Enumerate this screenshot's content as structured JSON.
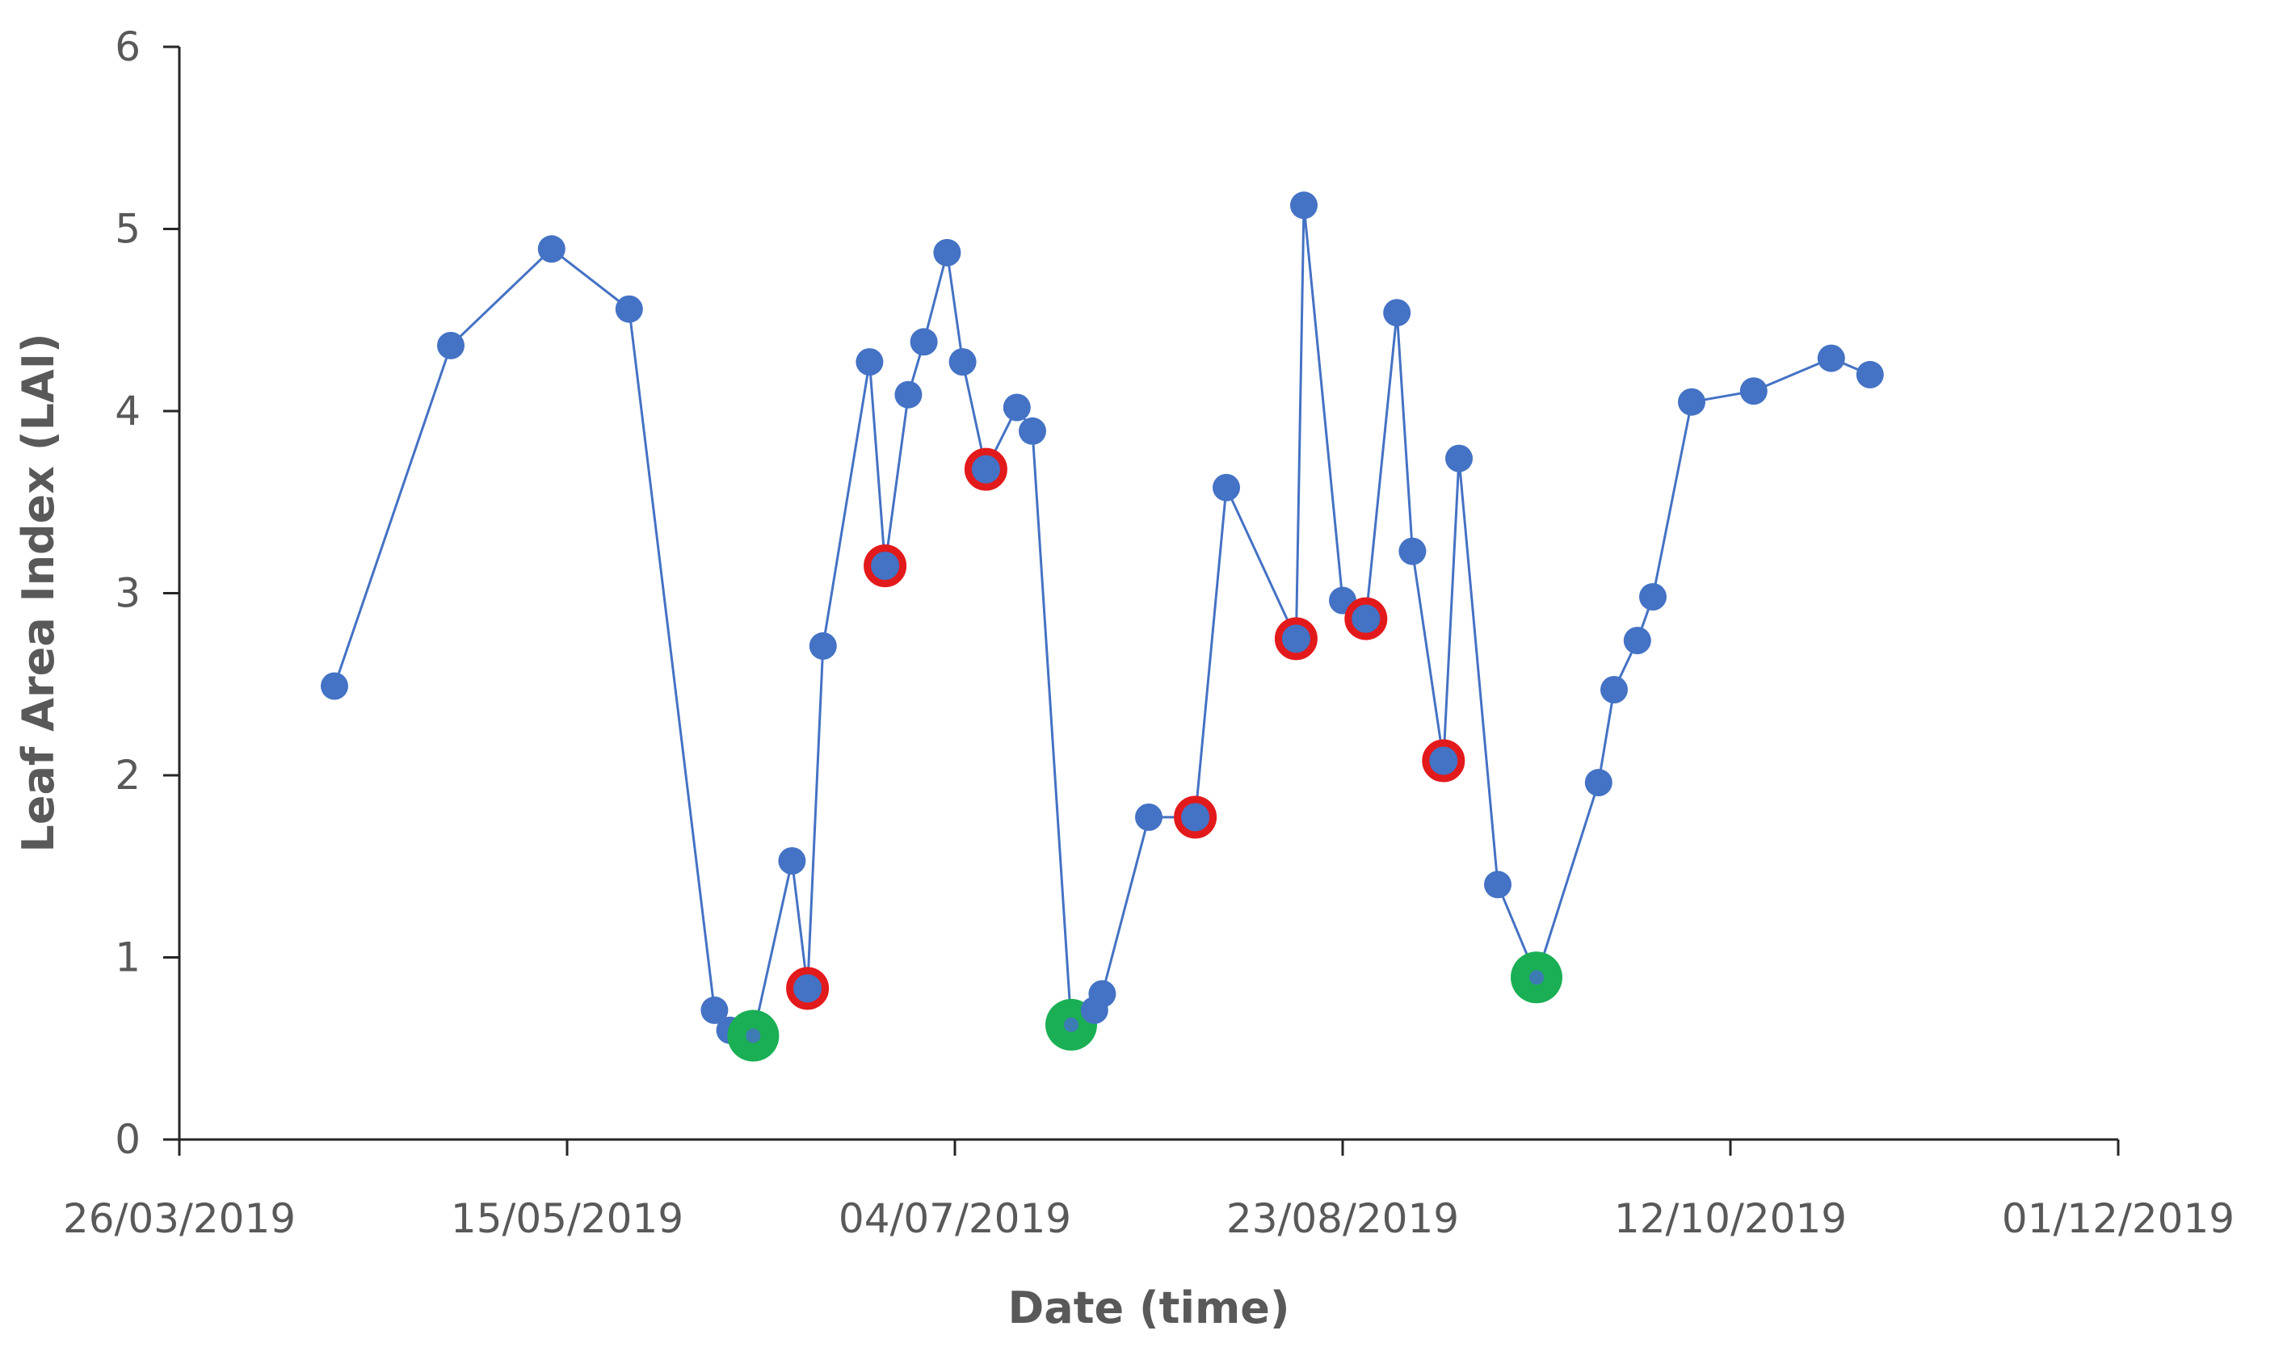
{
  "chart_data": {
    "type": "scatter",
    "title": "",
    "xlabel": "Date (time)",
    "ylabel": "Leaf Area Index (LAI)",
    "xlim": [
      "26/03/2019",
      "01/12/2019"
    ],
    "ylim": [
      0,
      6
    ],
    "x_tick_labels": [
      "26/03/2019",
      "15/05/2019",
      "04/07/2019",
      "23/08/2019",
      "12/10/2019",
      "01/12/2019"
    ],
    "y_tick_labels": [
      "0",
      "1",
      "2",
      "3",
      "4",
      "5",
      "6"
    ],
    "grid": false,
    "legend": "none",
    "colors": {
      "series": "#4472C4",
      "red_marker": "#E31A1C",
      "green_marker": "#1AAF54",
      "axis": "#262626",
      "text": "#595959"
    },
    "series": [
      {
        "points": [
          {
            "x": "15/04/2019",
            "y": 2.49
          },
          {
            "x": "30/04/2019",
            "y": 4.36
          },
          {
            "x": "13/05/2019",
            "y": 4.89
          },
          {
            "x": "23/05/2019",
            "y": 4.56
          },
          {
            "x": "03/06/2019",
            "y": 0.71
          },
          {
            "x": "05/06/2019",
            "y": 0.6
          },
          {
            "x": "08/06/2019",
            "y": 0.57,
            "marker": "green"
          },
          {
            "x": "13/06/2019",
            "y": 1.53
          },
          {
            "x": "15/06/2019",
            "y": 0.83,
            "marker": "red"
          },
          {
            "x": "17/06/2019",
            "y": 2.71
          },
          {
            "x": "23/06/2019",
            "y": 4.27
          },
          {
            "x": "25/06/2019",
            "y": 3.15,
            "marker": "red"
          },
          {
            "x": "28/06/2019",
            "y": 4.09
          },
          {
            "x": "30/06/2019",
            "y": 4.38
          },
          {
            "x": "03/07/2019",
            "y": 4.87
          },
          {
            "x": "05/07/2019",
            "y": 4.27
          },
          {
            "x": "08/07/2019",
            "y": 3.68,
            "marker": "red"
          },
          {
            "x": "12/07/2019",
            "y": 4.02
          },
          {
            "x": "14/07/2019",
            "y": 3.89
          },
          {
            "x": "19/07/2019",
            "y": 0.63,
            "marker": "green"
          },
          {
            "x": "22/07/2019",
            "y": 0.71
          },
          {
            "x": "23/07/2019",
            "y": 0.8
          },
          {
            "x": "29/07/2019",
            "y": 1.77
          },
          {
            "x": "04/08/2019",
            "y": 1.77,
            "marker": "red"
          },
          {
            "x": "08/08/2019",
            "y": 3.58
          },
          {
            "x": "17/08/2019",
            "y": 2.75,
            "marker": "red"
          },
          {
            "x": "18/08/2019",
            "y": 5.13
          },
          {
            "x": "23/08/2019",
            "y": 2.96
          },
          {
            "x": "26/08/2019",
            "y": 2.86,
            "marker": "red"
          },
          {
            "x": "30/08/2019",
            "y": 4.54
          },
          {
            "x": "01/09/2019",
            "y": 3.23
          },
          {
            "x": "05/09/2019",
            "y": 2.08,
            "marker": "red"
          },
          {
            "x": "07/09/2019",
            "y": 3.74
          },
          {
            "x": "12/09/2019",
            "y": 1.4
          },
          {
            "x": "17/09/2019",
            "y": 0.89,
            "marker": "green"
          },
          {
            "x": "25/09/2019",
            "y": 1.96
          },
          {
            "x": "27/09/2019",
            "y": 2.47
          },
          {
            "x": "30/09/2019",
            "y": 2.74
          },
          {
            "x": "02/10/2019",
            "y": 2.98
          },
          {
            "x": "07/10/2019",
            "y": 4.05
          },
          {
            "x": "15/10/2019",
            "y": 4.11
          },
          {
            "x": "25/10/2019",
            "y": 4.29
          },
          {
            "x": "30/10/2019",
            "y": 4.2
          }
        ]
      }
    ]
  }
}
